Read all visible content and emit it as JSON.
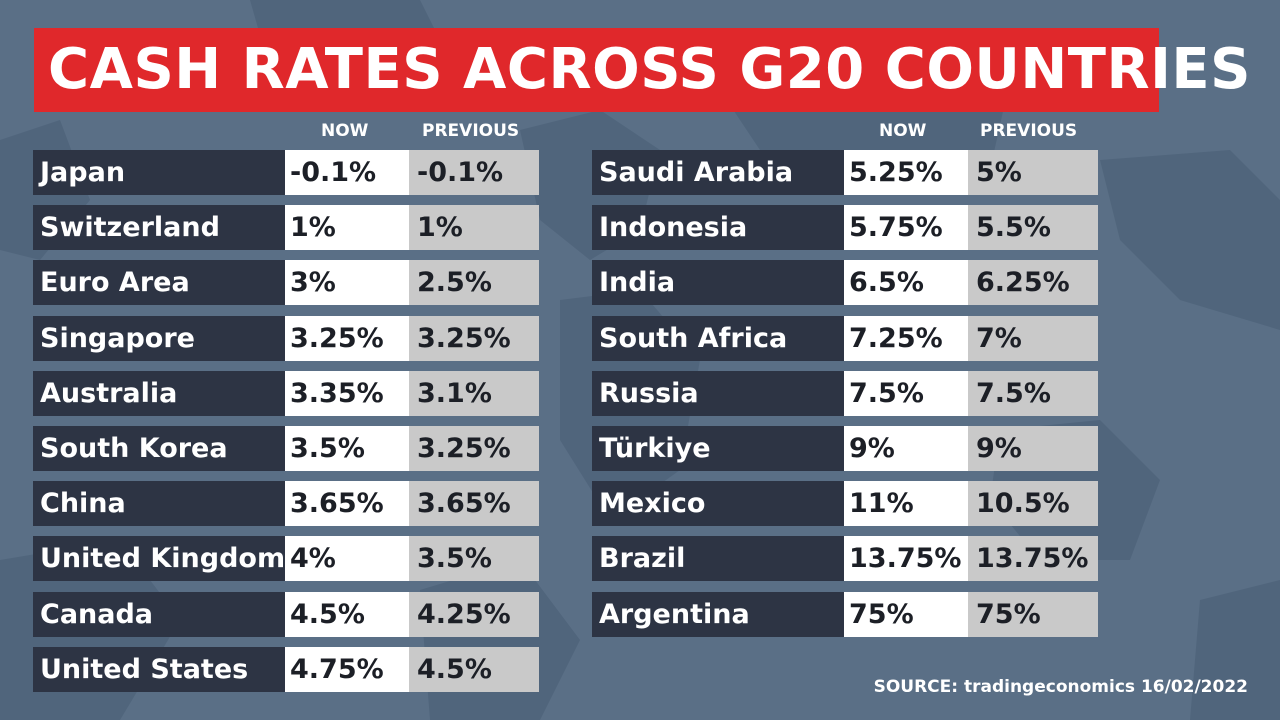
{
  "title": "CASH RATES ACROSS G20 COUNTRIES",
  "columns": {
    "now": "NOW",
    "previous": "PREVIOUS"
  },
  "source": "SOURCE: tradingeconomics 16/02/2022",
  "colors": {
    "title_bg": "#e0282b",
    "background": "#5a6f86",
    "name_bg": "#2d3444",
    "now_bg": "#ffffff",
    "prev_bg": "#c9c9c9"
  },
  "chart_data": {
    "type": "table",
    "title": "CASH RATES ACROSS G20 COUNTRIES",
    "columns": [
      "",
      "NOW",
      "PREVIOUS"
    ],
    "left_table": [
      {
        "country": "Japan",
        "now": "-0.1%",
        "previous": "-0.1%"
      },
      {
        "country": "Switzerland",
        "now": "1%",
        "previous": "1%"
      },
      {
        "country": "Euro Area",
        "now": "3%",
        "previous": "2.5%"
      },
      {
        "country": "Singapore",
        "now": "3.25%",
        "previous": "3.25%"
      },
      {
        "country": "Australia",
        "now": "3.35%",
        "previous": "3.1%"
      },
      {
        "country": "South Korea",
        "now": "3.5%",
        "previous": "3.25%"
      },
      {
        "country": "China",
        "now": "3.65%",
        "previous": "3.65%"
      },
      {
        "country": "United Kingdom",
        "now": "4%",
        "previous": "3.5%"
      },
      {
        "country": "Canada",
        "now": "4.5%",
        "previous": "4.25%"
      },
      {
        "country": "United States",
        "now": "4.75%",
        "previous": "4.5%"
      }
    ],
    "right_table": [
      {
        "country": "Saudi Arabia",
        "now": "5.25%",
        "previous": "5%"
      },
      {
        "country": "Indonesia",
        "now": "5.75%",
        "previous": "5.5%"
      },
      {
        "country": "India",
        "now": "6.5%",
        "previous": "6.25%"
      },
      {
        "country": "South Africa",
        "now": "7.25%",
        "previous": "7%"
      },
      {
        "country": "Russia",
        "now": "7.5%",
        "previous": "7.5%"
      },
      {
        "country": "Türkiye",
        "now": "9%",
        "previous": "9%"
      },
      {
        "country": "Mexico",
        "now": "11%",
        "previous": "10.5%"
      },
      {
        "country": "Brazil",
        "now": "13.75%",
        "previous": "13.75%"
      },
      {
        "country": "Argentina",
        "now": "75%",
        "previous": "75%"
      }
    ]
  }
}
